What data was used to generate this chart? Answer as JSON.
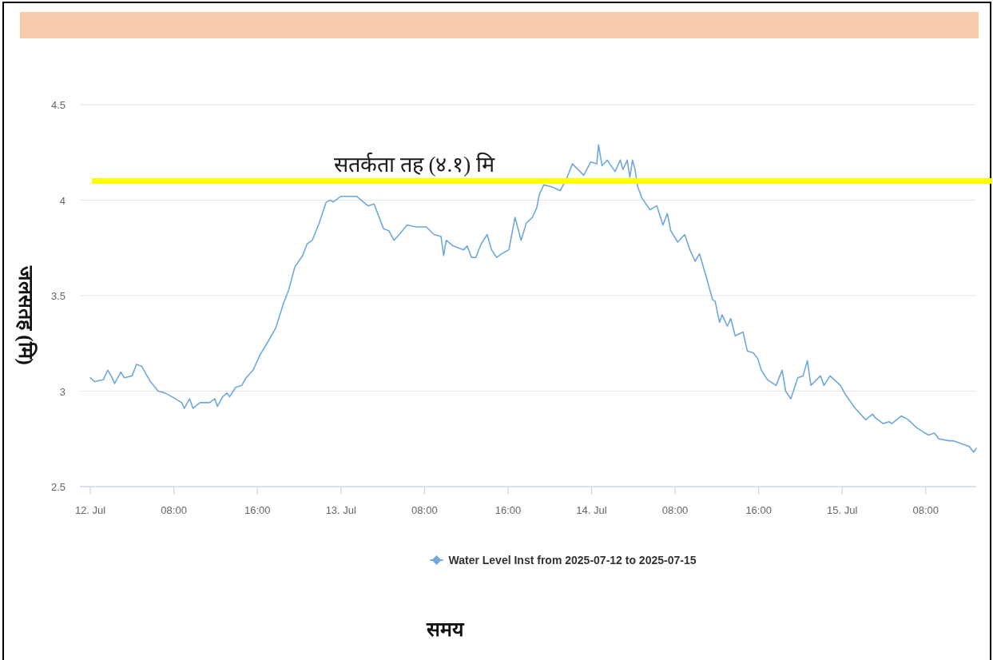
{
  "chart_data": {
    "type": "line",
    "ylabel": "जलसतह (मि)",
    "annotations": [
      "समय"
    ],
    "x": [
      "2025-07-12T00:00",
      "2025-07-12T00:25",
      "2025-07-12T01:15",
      "2025-07-12T01:40",
      "2025-07-12T02:00",
      "2025-07-12T02:20",
      "2025-07-12T02:55",
      "2025-07-12T03:15",
      "2025-07-12T04:00",
      "2025-07-12T04:25",
      "2025-07-12T04:55",
      "2025-07-12T05:45",
      "2025-07-12T06:30",
      "2025-07-12T07:10",
      "2025-07-12T07:50",
      "2025-07-12T08:45",
      "2025-07-12T09:00",
      "2025-07-12T09:30",
      "2025-07-12T09:50",
      "2025-07-12T10:30",
      "2025-07-12T11:25",
      "2025-07-12T11:55",
      "2025-07-12T12:10",
      "2025-07-12T12:40",
      "2025-07-12T13:05",
      "2025-07-12T13:20",
      "2025-07-12T13:55",
      "2025-07-12T14:30",
      "2025-07-12T14:55",
      "2025-07-12T15:35",
      "2025-07-12T16:15",
      "2025-07-12T16:55",
      "2025-07-12T17:45",
      "2025-07-12T18:30",
      "2025-07-12T19:00",
      "2025-07-12T19:35",
      "2025-07-12T20:20",
      "2025-07-12T20:45",
      "2025-07-12T21:15",
      "2025-07-12T21:55",
      "2025-07-12T22:35",
      "2025-07-12T23:00",
      "2025-07-12T23:15",
      "2025-07-13T00:00",
      "2025-07-13T00:45",
      "2025-07-13T01:30",
      "2025-07-13T02:35",
      "2025-07-13T03:10",
      "2025-07-13T04:05",
      "2025-07-13T04:35",
      "2025-07-13T05:05",
      "2025-07-13T05:35",
      "2025-07-13T06:20",
      "2025-07-13T07:10",
      "2025-07-13T08:10",
      "2025-07-13T08:55",
      "2025-07-13T09:35",
      "2025-07-13T09:50",
      "2025-07-13T10:05",
      "2025-07-13T10:45",
      "2025-07-13T11:45",
      "2025-07-13T12:05",
      "2025-07-13T12:30",
      "2025-07-13T12:55",
      "2025-07-13T13:25",
      "2025-07-13T14:00",
      "2025-07-13T14:25",
      "2025-07-13T14:55",
      "2025-07-13T15:25",
      "2025-07-13T16:05",
      "2025-07-13T16:40",
      "2025-07-13T17:15",
      "2025-07-13T17:45",
      "2025-07-13T18:20",
      "2025-07-13T18:45",
      "2025-07-13T19:00",
      "2025-07-13T19:25",
      "2025-07-13T20:10",
      "2025-07-13T21:00",
      "2025-07-13T21:35",
      "2025-07-13T22:10",
      "2025-07-13T23:15",
      "2025-07-13T23:55",
      "2025-07-14T00:30",
      "2025-07-14T00:40",
      "2025-07-14T01:00",
      "2025-07-14T01:30",
      "2025-07-14T02:15",
      "2025-07-14T02:45",
      "2025-07-14T03:00",
      "2025-07-14T03:25",
      "2025-07-14T03:40",
      "2025-07-14T03:55",
      "2025-07-14T04:10",
      "2025-07-14T04:25",
      "2025-07-14T04:50",
      "2025-07-14T05:35",
      "2025-07-14T06:15",
      "2025-07-14T06:50",
      "2025-07-14T07:15",
      "2025-07-14T07:35",
      "2025-07-14T08:15",
      "2025-07-14T08:55",
      "2025-07-14T09:25",
      "2025-07-14T09:55",
      "2025-07-14T10:20",
      "2025-07-14T10:55",
      "2025-07-14T11:35",
      "2025-07-14T11:50",
      "2025-07-14T12:15",
      "2025-07-14T12:30",
      "2025-07-14T13:00",
      "2025-07-14T13:20",
      "2025-07-14T13:45",
      "2025-07-14T14:30",
      "2025-07-14T14:55",
      "2025-07-14T15:30",
      "2025-07-14T15:55",
      "2025-07-14T16:15",
      "2025-07-14T16:50",
      "2025-07-14T17:40",
      "2025-07-14T18:15",
      "2025-07-14T18:35",
      "2025-07-14T19:05",
      "2025-07-14T19:45",
      "2025-07-14T20:15",
      "2025-07-14T20:40",
      "2025-07-14T21:00",
      "2025-07-14T21:55",
      "2025-07-14T22:15",
      "2025-07-14T22:50",
      "2025-07-14T23:50",
      "2025-07-15T00:20",
      "2025-07-15T01:15",
      "2025-07-15T02:15",
      "2025-07-15T02:55",
      "2025-07-15T03:10",
      "2025-07-15T03:55",
      "2025-07-15T04:30",
      "2025-07-15T04:45",
      "2025-07-15T05:40",
      "2025-07-15T06:20",
      "2025-07-15T07:05",
      "2025-07-15T08:15",
      "2025-07-15T08:50",
      "2025-07-15T09:15",
      "2025-07-15T10:15",
      "2025-07-15T10:40",
      "2025-07-15T11:40",
      "2025-07-15T12:10",
      "2025-07-15T12:35",
      "2025-07-15T12:50"
    ],
    "series": [
      {
        "name": "Water Level Inst from 2025-07-12 to 2025-07-15",
        "color": "#6fa8dc",
        "values": [
          3.07,
          3.05,
          3.06,
          3.11,
          3.08,
          3.04,
          3.1,
          3.07,
          3.08,
          3.14,
          3.13,
          3.05,
          3.0,
          2.99,
          2.97,
          2.94,
          2.91,
          2.96,
          2.91,
          2.94,
          2.94,
          2.96,
          2.92,
          2.97,
          2.99,
          2.97,
          3.02,
          3.03,
          3.07,
          3.11,
          3.19,
          3.25,
          3.33,
          3.46,
          3.53,
          3.65,
          3.71,
          3.77,
          3.79,
          3.88,
          3.99,
          4.0,
          3.99,
          4.02,
          4.02,
          4.02,
          3.97,
          3.98,
          3.85,
          3.84,
          3.79,
          3.82,
          3.87,
          3.86,
          3.86,
          3.82,
          3.81,
          3.71,
          3.79,
          3.76,
          3.74,
          3.76,
          3.7,
          3.7,
          3.77,
          3.82,
          3.74,
          3.7,
          3.72,
          3.74,
          3.91,
          3.79,
          3.88,
          3.91,
          3.96,
          4.03,
          4.08,
          4.07,
          4.05,
          4.11,
          4.19,
          4.13,
          4.2,
          4.19,
          4.29,
          4.18,
          4.21,
          4.15,
          4.21,
          4.16,
          4.21,
          4.12,
          4.21,
          4.16,
          4.07,
          4.01,
          3.95,
          3.97,
          3.87,
          3.93,
          3.84,
          3.78,
          3.82,
          3.74,
          3.68,
          3.72,
          3.61,
          3.48,
          3.47,
          3.36,
          3.4,
          3.34,
          3.38,
          3.29,
          3.31,
          3.21,
          3.2,
          3.17,
          3.11,
          3.06,
          3.03,
          3.11,
          3.0,
          2.96,
          3.07,
          3.08,
          3.16,
          3.03,
          3.08,
          3.03,
          3.08,
          3.03,
          2.98,
          2.91,
          2.85,
          2.88,
          2.86,
          2.83,
          2.84,
          2.83,
          2.87,
          2.85,
          2.81,
          2.77,
          2.78,
          2.75,
          2.74,
          2.74,
          2.72,
          2.71,
          2.68,
          2.7
        ]
      }
    ],
    "xlim": [
      "2025-07-11T23:00",
      "2025-07-15T12:50"
    ],
    "xticks": [
      {
        "value": "2025-07-12T00:00",
        "label": "12. Jul"
      },
      {
        "value": "2025-07-12T08:00",
        "label": "08:00"
      },
      {
        "value": "2025-07-12T16:00",
        "label": "16:00"
      },
      {
        "value": "2025-07-13T00:00",
        "label": "13. Jul"
      },
      {
        "value": "2025-07-13T08:00",
        "label": "08:00"
      },
      {
        "value": "2025-07-13T16:00",
        "label": "16:00"
      },
      {
        "value": "2025-07-14T00:00",
        "label": "14. Jul"
      },
      {
        "value": "2025-07-14T08:00",
        "label": "08:00"
      },
      {
        "value": "2025-07-14T16:00",
        "label": "16:00"
      },
      {
        "value": "2025-07-15T00:00",
        "label": "15. Jul"
      },
      {
        "value": "2025-07-15T08:00",
        "label": "08:00"
      }
    ],
    "ylim": [
      2.5,
      4.5
    ],
    "yticks": [
      2.5,
      3,
      3.5,
      4,
      4.5
    ],
    "ref_lines": [
      {
        "axis": "y",
        "value": 4.1,
        "label": "सतर्कता तह (४.१) मि",
        "color": "#ffff00"
      }
    ],
    "grid": "y",
    "legend": "bottom"
  }
}
